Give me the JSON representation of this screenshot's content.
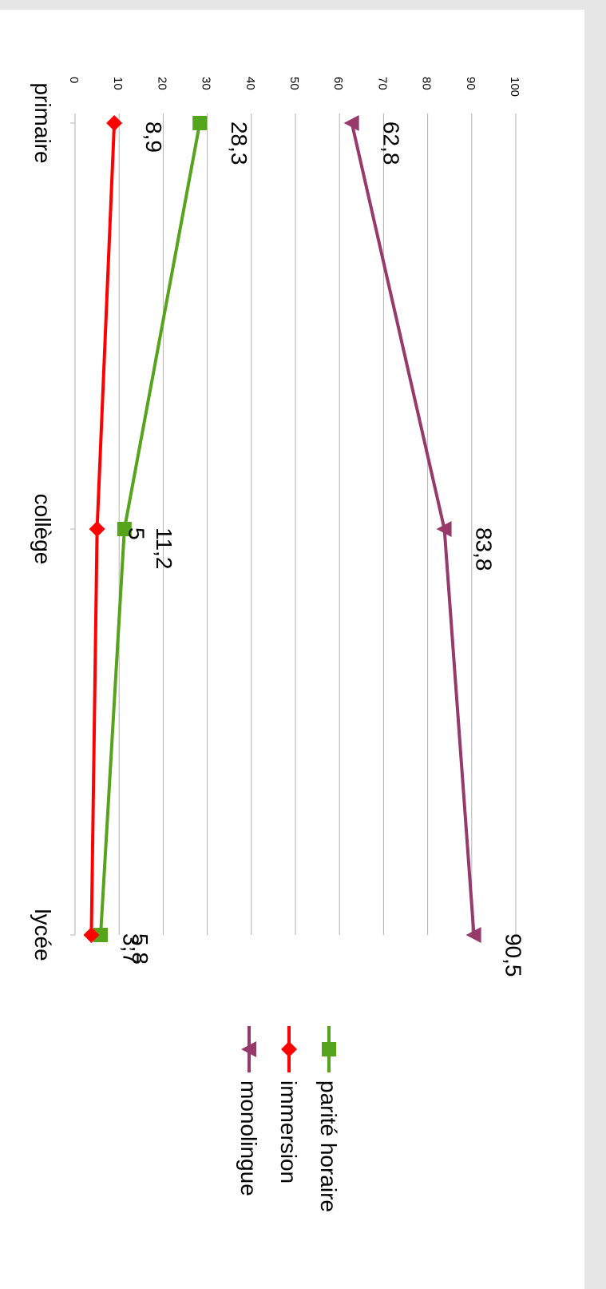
{
  "chart_data": {
    "type": "line",
    "categories": [
      "primaire",
      "collège",
      "lycée"
    ],
    "ylim": [
      0,
      100
    ],
    "yticks": [
      0,
      10,
      20,
      30,
      40,
      50,
      60,
      70,
      80,
      90,
      100
    ],
    "grid": true,
    "legend_position": "right",
    "series": [
      {
        "name": "parité horaire",
        "color": "#56a31c",
        "marker": "square",
        "values": [
          28.3,
          11.2,
          5.8
        ],
        "labels": [
          "28,3",
          "11,2",
          "5,8"
        ]
      },
      {
        "name": "immersion",
        "color": "#ff0000",
        "marker": "diamond",
        "values": [
          8.9,
          5,
          3.7
        ],
        "labels": [
          "8,9",
          "5",
          "3,7"
        ]
      },
      {
        "name": "monolingue",
        "color": "#973a6b",
        "marker": "triangle",
        "values": [
          62.8,
          83.8,
          90.5
        ],
        "labels": [
          "62,8",
          "83,8",
          "90,5"
        ]
      }
    ]
  }
}
